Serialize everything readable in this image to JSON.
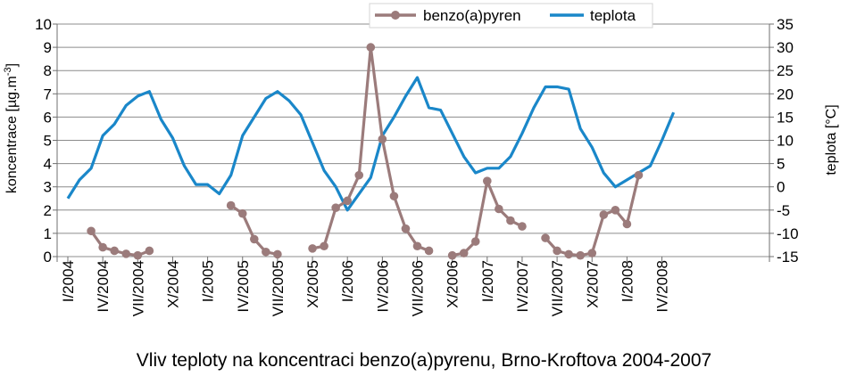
{
  "caption": "Vliv teploty na koncentraci benzo(a)pyrenu, Brno-Kroftova 2004-2007",
  "chart_data": {
    "type": "line",
    "title": "",
    "ylabel": "koncentrace [µg.m-3]",
    "ylabel_base": "koncentrace [µg.m",
    "ylabel_sup": "-3",
    "ylabel_close": "]",
    "y2label": "teplota [°C]",
    "ylim": [
      0,
      10
    ],
    "y2lim": [
      -15,
      35
    ],
    "yticks": [
      "0",
      "1",
      "2",
      "3",
      "4",
      "5",
      "6",
      "7",
      "8",
      "9",
      "10"
    ],
    "y2ticks": [
      "-15",
      "-10",
      "-5",
      "0",
      "5",
      "10",
      "15",
      "20",
      "25",
      "30",
      "35"
    ],
    "xlabels": [
      {
        "label": "I/2004",
        "month": 0
      },
      {
        "label": "IV/2004",
        "month": 3
      },
      {
        "label": "VII/2004",
        "month": 6
      },
      {
        "label": "X/2004",
        "month": 9
      },
      {
        "label": "I/2005",
        "month": 12
      },
      {
        "label": "IV/2005",
        "month": 15
      },
      {
        "label": "VII/2005",
        "month": 18
      },
      {
        "label": "X/2005",
        "month": 21
      },
      {
        "label": "I/2006",
        "month": 24
      },
      {
        "label": "IV/2006",
        "month": 27
      },
      {
        "label": "VII/2006",
        "month": 30
      },
      {
        "label": "X/2006",
        "month": 33
      },
      {
        "label": "I/2007",
        "month": 36
      },
      {
        "label": "IV/2007",
        "month": 39
      },
      {
        "label": "VII/2007",
        "month": 42
      },
      {
        "label": "X/2007",
        "month": 45
      },
      {
        "label": "I/2008",
        "month": 48
      },
      {
        "label": "IV/2008",
        "month": 51
      }
    ],
    "grid": true,
    "legend": "top-center",
    "series": [
      {
        "name": "benzo(a)pyren",
        "axis": "left",
        "color": "#9b7b7b",
        "marker": "circle",
        "segments": [
          [
            [
              2,
              1.1
            ],
            [
              3,
              0.4
            ],
            [
              4,
              0.25
            ],
            [
              5,
              0.12
            ],
            [
              6,
              0.05
            ],
            [
              7,
              0.25
            ]
          ],
          [
            [
              14,
              2.2
            ],
            [
              15,
              1.85
            ],
            [
              16,
              0.75
            ],
            [
              17,
              0.2
            ],
            [
              18,
              0.1
            ]
          ],
          [
            [
              21,
              0.35
            ],
            [
              22,
              0.45
            ],
            [
              23,
              2.1
            ],
            [
              24,
              2.4
            ],
            [
              25,
              3.5
            ],
            [
              26,
              9.0
            ],
            [
              27,
              5.05
            ],
            [
              28,
              2.6
            ],
            [
              29,
              1.2
            ],
            [
              30,
              0.45
            ],
            [
              31,
              0.25
            ]
          ],
          [
            [
              33,
              0.05
            ],
            [
              34,
              0.15
            ],
            [
              35,
              0.65
            ],
            [
              36,
              3.25
            ],
            [
              37,
              2.05
            ],
            [
              38,
              1.55
            ],
            [
              39,
              1.3
            ]
          ],
          [
            [
              41,
              0.8
            ],
            [
              42,
              0.25
            ],
            [
              43,
              0.1
            ],
            [
              44,
              0.05
            ],
            [
              45,
              0.15
            ],
            [
              46,
              1.8
            ],
            [
              47,
              2.0
            ],
            [
              48,
              1.4
            ],
            [
              49,
              3.5
            ]
          ]
        ]
      },
      {
        "name": "teplota",
        "axis": "right",
        "color": "#1a87c9",
        "marker": "none",
        "points": [
          [
            0,
            -2.5
          ],
          [
            1,
            1.5
          ],
          [
            2,
            4
          ],
          [
            3,
            11
          ],
          [
            4,
            13.5
          ],
          [
            5,
            17.5
          ],
          [
            6,
            19.5
          ],
          [
            7,
            20.5
          ],
          [
            8,
            14.5
          ],
          [
            9,
            10.5
          ],
          [
            10,
            4.5
          ],
          [
            11,
            0.5
          ],
          [
            12,
            0.5
          ],
          [
            13,
            -1.5
          ],
          [
            14,
            2.5
          ],
          [
            15,
            11
          ],
          [
            16,
            15
          ],
          [
            17,
            19
          ],
          [
            18,
            20.5
          ],
          [
            19,
            18.5
          ],
          [
            20,
            15.5
          ],
          [
            21,
            9.5
          ],
          [
            22,
            3.5
          ],
          [
            23,
            0
          ],
          [
            24,
            -5
          ],
          [
            25,
            -1.5
          ],
          [
            26,
            2
          ],
          [
            27,
            11
          ],
          [
            28,
            15
          ],
          [
            29,
            19.5
          ],
          [
            30,
            23.5
          ],
          [
            31,
            17
          ],
          [
            32,
            16.5
          ],
          [
            33,
            11.5
          ],
          [
            34,
            6.5
          ],
          [
            35,
            3
          ],
          [
            36,
            4
          ],
          [
            37,
            4
          ],
          [
            38,
            6.5
          ],
          [
            39,
            11.5
          ],
          [
            40,
            17
          ],
          [
            41,
            21.5
          ],
          [
            42,
            21.5
          ],
          [
            43,
            21
          ],
          [
            44,
            12.5
          ],
          [
            45,
            8.5
          ],
          [
            46,
            3
          ],
          [
            47,
            0
          ],
          [
            48,
            1.5
          ],
          [
            49,
            3
          ],
          [
            50,
            4.5
          ],
          [
            51,
            10
          ],
          [
            52,
            16
          ]
        ]
      }
    ]
  }
}
